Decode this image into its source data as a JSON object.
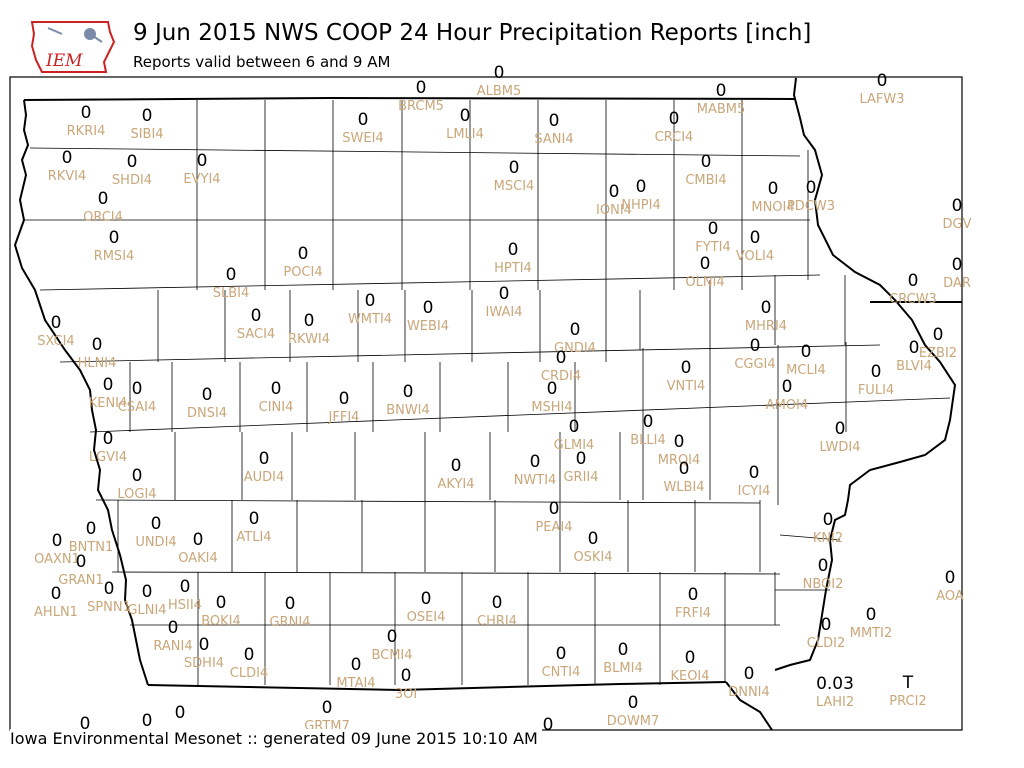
{
  "header": {
    "logo_text": "IEM",
    "title": "9 Jun 2015 NWS COOP 24 Hour Precipitation Reports [inch]",
    "subtitle": "Reports valid between 6 and 9 AM"
  },
  "footer": {
    "text": "Iowa Environmental Mesonet :: generated 09 June 2015 10:10 AM"
  },
  "colors": {
    "value_text": "#000000",
    "station_text": "#c9a77a",
    "county_lines": "#000000",
    "logo_red": "#cc2222"
  },
  "map_data": {
    "type": "station_plot",
    "region": "Iowa",
    "stations": [
      {
        "id": "BRCM5",
        "value": "0"
      },
      {
        "id": "ALBM5",
        "value": "0"
      },
      {
        "id": "LAFW3",
        "value": "0"
      },
      {
        "id": "RKRI4",
        "value": "0"
      },
      {
        "id": "SIBI4",
        "value": "0"
      },
      {
        "id": "SWEI4",
        "value": "0"
      },
      {
        "id": "LMLI4",
        "value": "0"
      },
      {
        "id": "SANI4",
        "value": "0"
      },
      {
        "id": "CRCI4",
        "value": "0"
      },
      {
        "id": "MABM5",
        "value": "0"
      },
      {
        "id": "RKVI4",
        "value": "0"
      },
      {
        "id": "SHDI4",
        "value": "0"
      },
      {
        "id": "EVYI4",
        "value": "0"
      },
      {
        "id": "MSCI4",
        "value": "0"
      },
      {
        "id": "CMBI4",
        "value": "0"
      },
      {
        "id": "ORCI4",
        "value": "0"
      },
      {
        "id": "IONI4",
        "value": "0"
      },
      {
        "id": "NHPI4",
        "value": "0"
      },
      {
        "id": "MNOI4",
        "value": "0"
      },
      {
        "id": "PDCW3",
        "value": "0"
      },
      {
        "id": "DGV",
        "value": "0"
      },
      {
        "id": "RMSI4",
        "value": "0"
      },
      {
        "id": "POCI4",
        "value": "0"
      },
      {
        "id": "HPTI4",
        "value": "0"
      },
      {
        "id": "FYTI4",
        "value": "0"
      },
      {
        "id": "VOLI4",
        "value": "0"
      },
      {
        "id": "SLBI4",
        "value": "0"
      },
      {
        "id": "OLNI4",
        "value": "0"
      },
      {
        "id": "CRCW3",
        "value": "0"
      },
      {
        "id": "DAR",
        "value": "0"
      },
      {
        "id": "SACI4",
        "value": "0"
      },
      {
        "id": "WMTI4",
        "value": "0"
      },
      {
        "id": "WEBI4",
        "value": "0"
      },
      {
        "id": "IWAI4",
        "value": "0"
      },
      {
        "id": "SXCI4",
        "value": "0"
      },
      {
        "id": "RKWI4",
        "value": "0"
      },
      {
        "id": "MHRI4",
        "value": "0"
      },
      {
        "id": "EZBI2",
        "value": "0"
      },
      {
        "id": "GNDI4",
        "value": "0"
      },
      {
        "id": "HLNI4",
        "value": "0"
      },
      {
        "id": "CGGI4",
        "value": "0"
      },
      {
        "id": "MCLI4",
        "value": "0"
      },
      {
        "id": "BLVI4",
        "value": "0"
      },
      {
        "id": "CRDI4",
        "value": "0"
      },
      {
        "id": "VNTI4",
        "value": "0"
      },
      {
        "id": "FULI4",
        "value": "0"
      },
      {
        "id": "KENI4",
        "value": "0"
      },
      {
        "id": "CSAI4",
        "value": "0"
      },
      {
        "id": "DNSI4",
        "value": "0"
      },
      {
        "id": "CINI4",
        "value": "0"
      },
      {
        "id": "JFFI4",
        "value": "0"
      },
      {
        "id": "BNWI4",
        "value": "0"
      },
      {
        "id": "MSHI4",
        "value": "0"
      },
      {
        "id": "AMOI4",
        "value": "0"
      },
      {
        "id": "GLMI4",
        "value": "0"
      },
      {
        "id": "BLLI4",
        "value": "0"
      },
      {
        "id": "LWDI4",
        "value": "0"
      },
      {
        "id": "LGVI4",
        "value": "0"
      },
      {
        "id": "MRQI4",
        "value": "0"
      },
      {
        "id": "AUDI4",
        "value": "0"
      },
      {
        "id": "AKYI4",
        "value": "0"
      },
      {
        "id": "NWTI4",
        "value": "0"
      },
      {
        "id": "GRII4",
        "value": "0"
      },
      {
        "id": "WLBI4",
        "value": "0"
      },
      {
        "id": "ICYI4",
        "value": "0"
      },
      {
        "id": "LOGI4",
        "value": "0"
      },
      {
        "id": "ATLI4",
        "value": "0"
      },
      {
        "id": "PEAI4",
        "value": "0"
      },
      {
        "id": "UNDI4",
        "value": "0"
      },
      {
        "id": "BNTN1",
        "value": "0"
      },
      {
        "id": "OAKI4",
        "value": "0"
      },
      {
        "id": "OSKI4",
        "value": "0"
      },
      {
        "id": "OAXN1",
        "value": "0"
      },
      {
        "id": "KNI2",
        "value": "0"
      },
      {
        "id": "GRAN1",
        "value": "0"
      },
      {
        "id": "SPNN1",
        "value": "0"
      },
      {
        "id": "GLNI4",
        "value": "0"
      },
      {
        "id": "HSII4",
        "value": "0"
      },
      {
        "id": "AHLN1",
        "value": "0"
      },
      {
        "id": "BOKI4",
        "value": "0"
      },
      {
        "id": "GRNI4",
        "value": "0"
      },
      {
        "id": "OSEI4",
        "value": "0"
      },
      {
        "id": "CHRI4",
        "value": "0"
      },
      {
        "id": "FRFI4",
        "value": "0"
      },
      {
        "id": "NBOI2",
        "value": "0"
      },
      {
        "id": "AOA",
        "value": "0"
      },
      {
        "id": "MMTI2",
        "value": "0"
      },
      {
        "id": "RANI4",
        "value": "0"
      },
      {
        "id": "BCMI4",
        "value": "0"
      },
      {
        "id": "CLDI2",
        "value": "0"
      },
      {
        "id": "SDHI4",
        "value": "0"
      },
      {
        "id": "CLDI4",
        "value": "0"
      },
      {
        "id": "CNTI4",
        "value": "0"
      },
      {
        "id": "BLMI4",
        "value": "0"
      },
      {
        "id": "KEOI4",
        "value": "0"
      },
      {
        "id": "MTAI4",
        "value": "0"
      },
      {
        "id": "3OI",
        "value": "0"
      },
      {
        "id": "DNNI4",
        "value": "0"
      },
      {
        "id": "LAHI2",
        "value": "0.03"
      },
      {
        "id": "PRCI2",
        "value": "T"
      },
      {
        "id": "DOWM7",
        "value": "0"
      },
      {
        "id": "GRTM7",
        "value": "0"
      }
    ],
    "unlabeled_values": [
      "0",
      "0",
      "0",
      "0"
    ]
  }
}
